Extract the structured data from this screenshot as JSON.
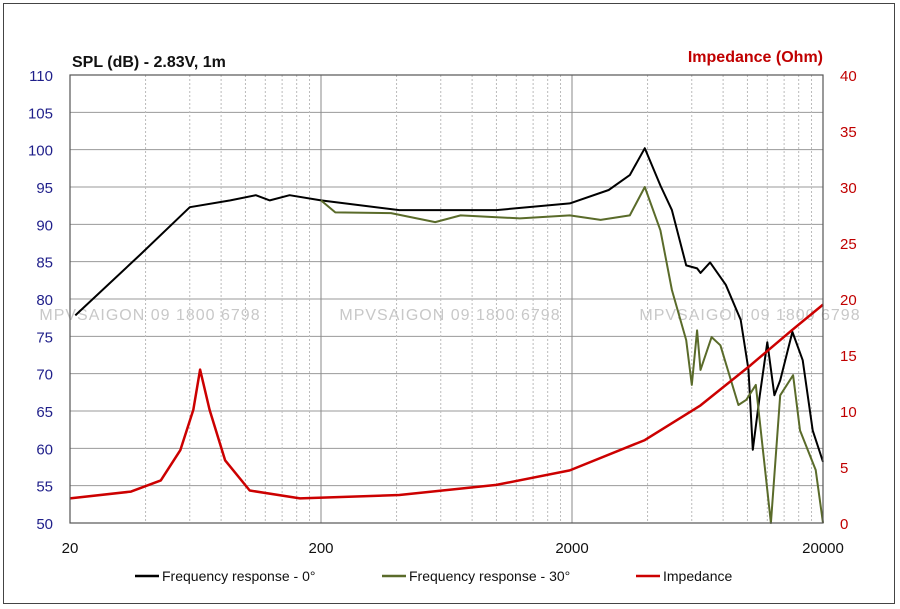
{
  "chart_data": {
    "type": "line",
    "title_left": "SPL (dB) - 2.83V, 1m",
    "title_right": "Impedance (Ohm)",
    "x_scale": "log",
    "xlim": [
      20,
      20000
    ],
    "x_ticks": [
      "20",
      "200",
      "2000",
      "20000"
    ],
    "x_tick_values": [
      20,
      200,
      2000,
      20000
    ],
    "ylim_left": [
      50,
      110
    ],
    "y_ticks_left": [
      "50",
      "55",
      "60",
      "65",
      "70",
      "75",
      "80",
      "85",
      "90",
      "95",
      "100",
      "105",
      "110"
    ],
    "ylim_right": [
      0,
      40
    ],
    "y_ticks_right": [
      "0",
      "5",
      "10",
      "15",
      "20",
      "25",
      "30",
      "35",
      "40"
    ],
    "grid": true,
    "legend_position": "bottom",
    "watermark": "MPVSAIGON 09 1800 6798",
    "colors": {
      "left_axis": "#1f1f8a",
      "right_axis": "#c00000"
    },
    "series": [
      {
        "name": "Frequency response - 0°",
        "axis": "left",
        "color": "#000000",
        "x": [
          21,
          38,
          60,
          87,
          110,
          125,
          150,
          200,
          410,
          1000,
          1960,
          2800,
          3400,
          3900,
          4500,
          5000,
          5700,
          6300,
          6500,
          7100,
          8200,
          9400,
          10100,
          10500,
          11200,
          12000,
          12800,
          13500,
          15100,
          16600,
          18200,
          20000
        ],
        "y": [
          77.8,
          85.9,
          92.3,
          93.2,
          93.9,
          93.2,
          93.9,
          93.2,
          91.9,
          91.9,
          92.8,
          94.6,
          96.6,
          100.2,
          95.2,
          91.9,
          84.5,
          84.1,
          83.5,
          84.9,
          81.9,
          77.2,
          70.5,
          59.8,
          67.1,
          74.2,
          67.1,
          69.1,
          75.6,
          71.8,
          62.4,
          58.2
        ]
      },
      {
        "name": "Frequency response - 30°",
        "axis": "left",
        "color": "#5a6b2a",
        "x": [
          200,
          228,
          380,
          570,
          720,
          1240,
          1960,
          2600,
          3400,
          3900,
          4500,
          5000,
          5700,
          6000,
          6300,
          6500,
          7200,
          7800,
          9200,
          9900,
          10800,
          12400,
          13500,
          15200,
          16200,
          18700,
          20000
        ],
        "y": [
          93.2,
          91.6,
          91.5,
          90.3,
          91.2,
          90.8,
          91.2,
          90.6,
          91.2,
          95.0,
          89.2,
          81.2,
          74.5,
          68.5,
          75.8,
          70.5,
          74.9,
          73.8,
          65.8,
          66.5,
          68.5,
          50.0,
          67.1,
          69.8,
          62.4,
          57.1,
          50.0
        ]
      },
      {
        "name": "Impedance",
        "axis": "right",
        "color": "#cc0000",
        "x": [
          20,
          35,
          46,
          55,
          62,
          66,
          72,
          83,
          104,
          165,
          410,
          1000,
          1960,
          3900,
          6500,
          10300,
          15000,
          20000
        ],
        "y": [
          2.2,
          2.8,
          3.8,
          6.5,
          10.1,
          13.7,
          10.1,
          5.6,
          2.9,
          2.2,
          2.5,
          3.4,
          4.7,
          7.4,
          10.5,
          14.1,
          17.2,
          19.5
        ]
      }
    ]
  }
}
